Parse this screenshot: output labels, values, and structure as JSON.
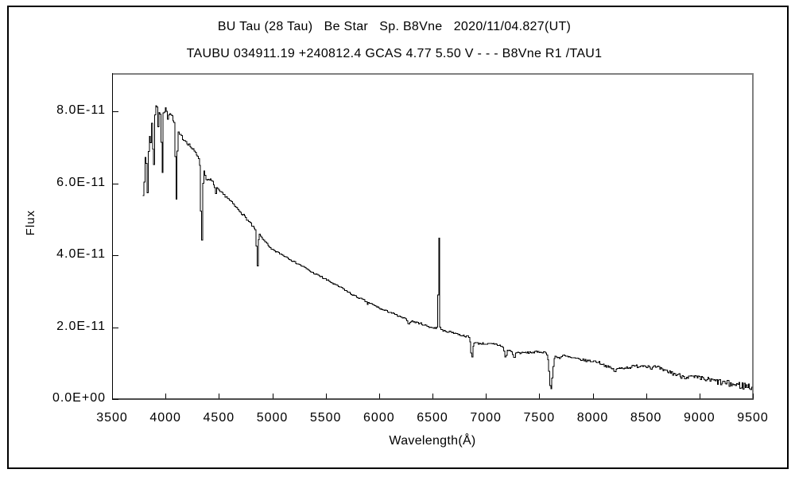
{
  "titles": {
    "line1": "BU Tau (28 Tau)   Be Star   Sp. B8Vne   2020/11/04.827(UT)",
    "line2": "TAUBU 034911.19 +240812.4 GCAS 4.77 5.50 V - - - B8Vne R1 /TAU1"
  },
  "chart_data": {
    "type": "line",
    "title": "BU Tau (28 Tau)   Be Star   Sp. B8Vne   2020/11/04.827(UT)",
    "subtitle": "TAUBU 034911.19 +240812.4 GCAS 4.77 5.50 V - - - B8Vne R1 /TAU1",
    "xlabel": "Wavelength(Å)",
    "ylabel": "Flux",
    "xlim": [
      3500,
      9500
    ],
    "ylim_flux_1e11": [
      0,
      9.07
    ],
    "grid": false,
    "legend": "none",
    "line_color": "#000000",
    "background": "#ffffff",
    "border_colors": {
      "left": "#000000",
      "top": "#808080",
      "right": "#808080",
      "bottom": "#4d4d4d"
    },
    "x_ticks": [
      3500,
      4000,
      4500,
      5000,
      5500,
      6000,
      6500,
      7000,
      7500,
      8000,
      8500,
      9000,
      9500
    ],
    "x_tick_labels": [
      "3500",
      "4000",
      "4500",
      "5000",
      "5500",
      "6000",
      "6500",
      "7000",
      "7500",
      "8000",
      "8500",
      "9000",
      "9500"
    ],
    "y_ticks_flux_1e11": [
      0,
      2,
      4,
      6,
      8
    ],
    "y_tick_labels": [
      "0.0E+00",
      "2.0E-11",
      "4.0E-11",
      "6.0E-11",
      "8.0E-11"
    ],
    "flux_scale": "1e-11",
    "spectrum_domain_angstrom": [
      3788,
      9500
    ],
    "sample_step_angstrom": 10,
    "continuum_points_flux_1e11": [
      [
        3788,
        5.9
      ],
      [
        3800,
        6.45
      ],
      [
        3815,
        6.7
      ],
      [
        3830,
        7.0
      ],
      [
        3845,
        7.25
      ],
      [
        3860,
        7.5
      ],
      [
        3875,
        7.7
      ],
      [
        3890,
        7.9
      ],
      [
        3905,
        8.05
      ],
      [
        3920,
        8.15
      ],
      [
        3935,
        8.1
      ],
      [
        3950,
        8.0
      ],
      [
        3965,
        7.98
      ],
      [
        3985,
        8.0
      ],
      [
        4005,
        8.06
      ],
      [
        4025,
        8.05
      ],
      [
        4045,
        7.96
      ],
      [
        4070,
        7.82
      ],
      [
        4100,
        7.55
      ],
      [
        4130,
        7.36
      ],
      [
        4165,
        7.26
      ],
      [
        4200,
        7.16
      ],
      [
        4260,
        6.94
      ],
      [
        4310,
        6.74
      ],
      [
        4345,
        6.52
      ],
      [
        4390,
        6.08
      ],
      [
        4425,
        6.1
      ],
      [
        4460,
        5.96
      ],
      [
        4500,
        5.8
      ],
      [
        4575,
        5.62
      ],
      [
        4650,
        5.38
      ],
      [
        4725,
        5.14
      ],
      [
        4800,
        4.88
      ],
      [
        4865,
        4.62
      ],
      [
        4930,
        4.41
      ],
      [
        4985,
        4.18
      ],
      [
        5060,
        4.07
      ],
      [
        5135,
        3.96
      ],
      [
        5210,
        3.81
      ],
      [
        5285,
        3.7
      ],
      [
        5360,
        3.55
      ],
      [
        5435,
        3.44
      ],
      [
        5510,
        3.32
      ],
      [
        5585,
        3.19
      ],
      [
        5660,
        3.08
      ],
      [
        5735,
        2.93
      ],
      [
        5810,
        2.82
      ],
      [
        5885,
        2.71
      ],
      [
        5960,
        2.6
      ],
      [
        6030,
        2.49
      ],
      [
        6105,
        2.42
      ],
      [
        6180,
        2.31
      ],
      [
        6255,
        2.22
      ],
      [
        6330,
        2.15
      ],
      [
        6405,
        2.09
      ],
      [
        6480,
        2.0
      ],
      [
        6560,
        1.95
      ],
      [
        6615,
        1.89
      ],
      [
        6690,
        1.86
      ],
      [
        6765,
        1.78
      ],
      [
        6840,
        1.73
      ],
      [
        6905,
        1.56
      ],
      [
        7000,
        1.54
      ],
      [
        7100,
        1.52
      ],
      [
        7150,
        1.48
      ],
      [
        7225,
        1.34
      ],
      [
        7320,
        1.28
      ],
      [
        7420,
        1.3
      ],
      [
        7520,
        1.31
      ],
      [
        7575,
        1.3
      ],
      [
        7690,
        1.15
      ],
      [
        7725,
        1.21
      ],
      [
        7800,
        1.15
      ],
      [
        7870,
        1.11
      ],
      [
        7950,
        1.07
      ],
      [
        8050,
        1.04
      ],
      [
        8110,
        0.95
      ],
      [
        8165,
        0.87
      ],
      [
        8210,
        0.81
      ],
      [
        8255,
        0.86
      ],
      [
        8330,
        0.88
      ],
      [
        8420,
        0.92
      ],
      [
        8480,
        0.94
      ],
      [
        8550,
        0.91
      ],
      [
        8620,
        0.86
      ],
      [
        8720,
        0.75
      ],
      [
        8820,
        0.65
      ],
      [
        8940,
        0.6
      ],
      [
        9090,
        0.53
      ],
      [
        9240,
        0.44
      ],
      [
        9390,
        0.38
      ],
      [
        9500,
        0.34
      ]
    ],
    "absorption_lines_center_depth_sigma": [
      [
        3798,
        0.75,
        4
      ],
      [
        3820,
        0.45,
        3.5
      ],
      [
        3835,
        1.45,
        4.5
      ],
      [
        3860,
        0.5,
        3.5
      ],
      [
        3889,
        1.85,
        5
      ],
      [
        3934,
        0.48,
        4
      ],
      [
        3970,
        1.9,
        5.5
      ],
      [
        4026,
        0.3,
        4
      ],
      [
        4102,
        2.0,
        7
      ],
      [
        4340,
        2.3,
        7
      ],
      [
        4471,
        0.22,
        5
      ],
      [
        4861,
        1.0,
        6
      ],
      [
        5890,
        0.07,
        5
      ],
      [
        6280,
        0.12,
        8
      ],
      [
        6869,
        0.5,
        9
      ],
      [
        7185,
        0.26,
        9
      ],
      [
        7265,
        0.18,
        9
      ],
      [
        7610,
        0.98,
        15
      ],
      [
        8210,
        0.05,
        6
      ],
      [
        8545,
        0.05,
        8
      ],
      [
        8665,
        0.06,
        8
      ]
    ],
    "emission_peak_points_flux_1e11": [
      [
        6543,
        2.0
      ],
      [
        6553,
        2.9
      ],
      [
        6563,
        4.48
      ],
      [
        6573,
        2.0
      ]
    ],
    "noise_profile_flux_1e11": [
      [
        3788,
        0.13
      ],
      [
        3960,
        0.11
      ],
      [
        4020,
        0.06
      ],
      [
        4300,
        0.045
      ],
      [
        4600,
        0.032
      ],
      [
        5000,
        0.027
      ],
      [
        5600,
        0.024
      ],
      [
        6200,
        0.022
      ],
      [
        6800,
        0.025
      ],
      [
        7100,
        0.03
      ],
      [
        7400,
        0.028
      ],
      [
        7800,
        0.03
      ],
      [
        8200,
        0.035
      ],
      [
        8500,
        0.05
      ],
      [
        8800,
        0.065
      ],
      [
        9050,
        0.08
      ],
      [
        9250,
        0.095
      ],
      [
        9400,
        0.11
      ],
      [
        9500,
        0.12
      ]
    ],
    "noise_seed": 7
  }
}
